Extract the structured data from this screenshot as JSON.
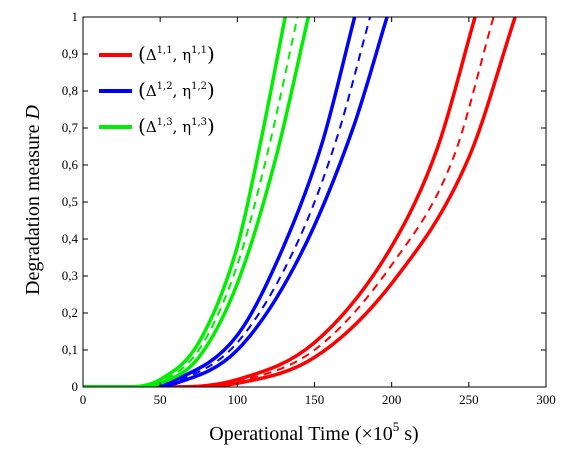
{
  "chart_data": {
    "type": "line",
    "xlabel_main": "Operational Time (×10",
    "xlabel_exp": "5",
    "xlabel_tail": " s)",
    "ylabel_main": "Degradation measure",
    "ylabel_symbol": "D",
    "xlim": [
      0,
      300
    ],
    "ylim": [
      0,
      1
    ],
    "xticks": [
      0,
      50,
      100,
      150,
      200,
      250,
      300
    ],
    "xtick_labels": [
      "0",
      "50",
      "100",
      "150",
      "200",
      "250",
      "300"
    ],
    "yticks": [
      0,
      0.1,
      0.2,
      0.3,
      0.4,
      0.5,
      0.6,
      0.7,
      0.8,
      0.9,
      1
    ],
    "ytick_labels": [
      "0",
      "0,1",
      "0,2",
      "0,3",
      "0,4",
      "0,5",
      "0,6",
      "0,7",
      "0,8",
      "0,9",
      "1"
    ],
    "grid": false,
    "legend_position": "top-left",
    "legend": [
      {
        "label": "(Δ1,1, η1,1)",
        "base": "Δ",
        "sup1": "1,1",
        "mid": "η",
        "sup2": "1,1",
        "color": "#ff0000"
      },
      {
        "label": "(Δ1,2, η1,2)",
        "base": "Δ",
        "sup1": "1,2",
        "mid": "η",
        "sup2": "1,2",
        "color": "#0000ff"
      },
      {
        "label": "(Δ1,3, η1,3)",
        "base": "Δ",
        "sup1": "1,3",
        "mid": "η",
        "sup2": "1,3",
        "color": "#00ee00"
      }
    ],
    "series": [
      {
        "group": 1,
        "style": "solid",
        "color": "#ff0000",
        "x": [
          0,
          60,
          100,
          150,
          200,
          230,
          254
        ],
        "y": [
          0,
          0,
          0.02,
          0.12,
          0.38,
          0.65,
          1.0
        ]
      },
      {
        "group": 1,
        "style": "dashed",
        "color": "#ff0000",
        "x": [
          0,
          62,
          100,
          150,
          200,
          240,
          266
        ],
        "y": [
          0,
          0,
          0.015,
          0.1,
          0.33,
          0.62,
          1.0
        ]
      },
      {
        "group": 1,
        "style": "solid",
        "color": "#ff0000",
        "x": [
          0,
          65,
          100,
          150,
          200,
          250,
          280
        ],
        "y": [
          0,
          0,
          0.01,
          0.08,
          0.28,
          0.62,
          1.0
        ]
      },
      {
        "group": 2,
        "style": "solid",
        "color": "#0000ff",
        "x": [
          0,
          35,
          60,
          100,
          130,
          155,
          176
        ],
        "y": [
          0,
          0,
          0.02,
          0.14,
          0.38,
          0.66,
          1.0
        ]
      },
      {
        "group": 2,
        "style": "dashed",
        "color": "#0000ff",
        "x": [
          0,
          37,
          60,
          100,
          140,
          165,
          186
        ],
        "y": [
          0,
          0,
          0.015,
          0.12,
          0.4,
          0.68,
          1.0
        ]
      },
      {
        "group": 2,
        "style": "solid",
        "color": "#0000ff",
        "x": [
          0,
          40,
          60,
          100,
          140,
          175,
          197
        ],
        "y": [
          0,
          0,
          0.01,
          0.1,
          0.35,
          0.7,
          1.0
        ]
      },
      {
        "group": 3,
        "style": "solid",
        "color": "#00ee00",
        "x": [
          0,
          30,
          50,
          75,
          100,
          115,
          131
        ],
        "y": [
          0,
          0,
          0.02,
          0.12,
          0.38,
          0.66,
          1.0
        ]
      },
      {
        "group": 3,
        "style": "dashed",
        "color": "#00ee00",
        "x": [
          0,
          32,
          50,
          75,
          100,
          120,
          139
        ],
        "y": [
          0,
          0,
          0.015,
          0.1,
          0.33,
          0.64,
          1.0
        ]
      },
      {
        "group": 3,
        "style": "solid",
        "color": "#00ee00",
        "x": [
          0,
          34,
          50,
          75,
          100,
          125,
          146
        ],
        "y": [
          0,
          0,
          0.01,
          0.08,
          0.28,
          0.62,
          1.0
        ]
      }
    ]
  }
}
